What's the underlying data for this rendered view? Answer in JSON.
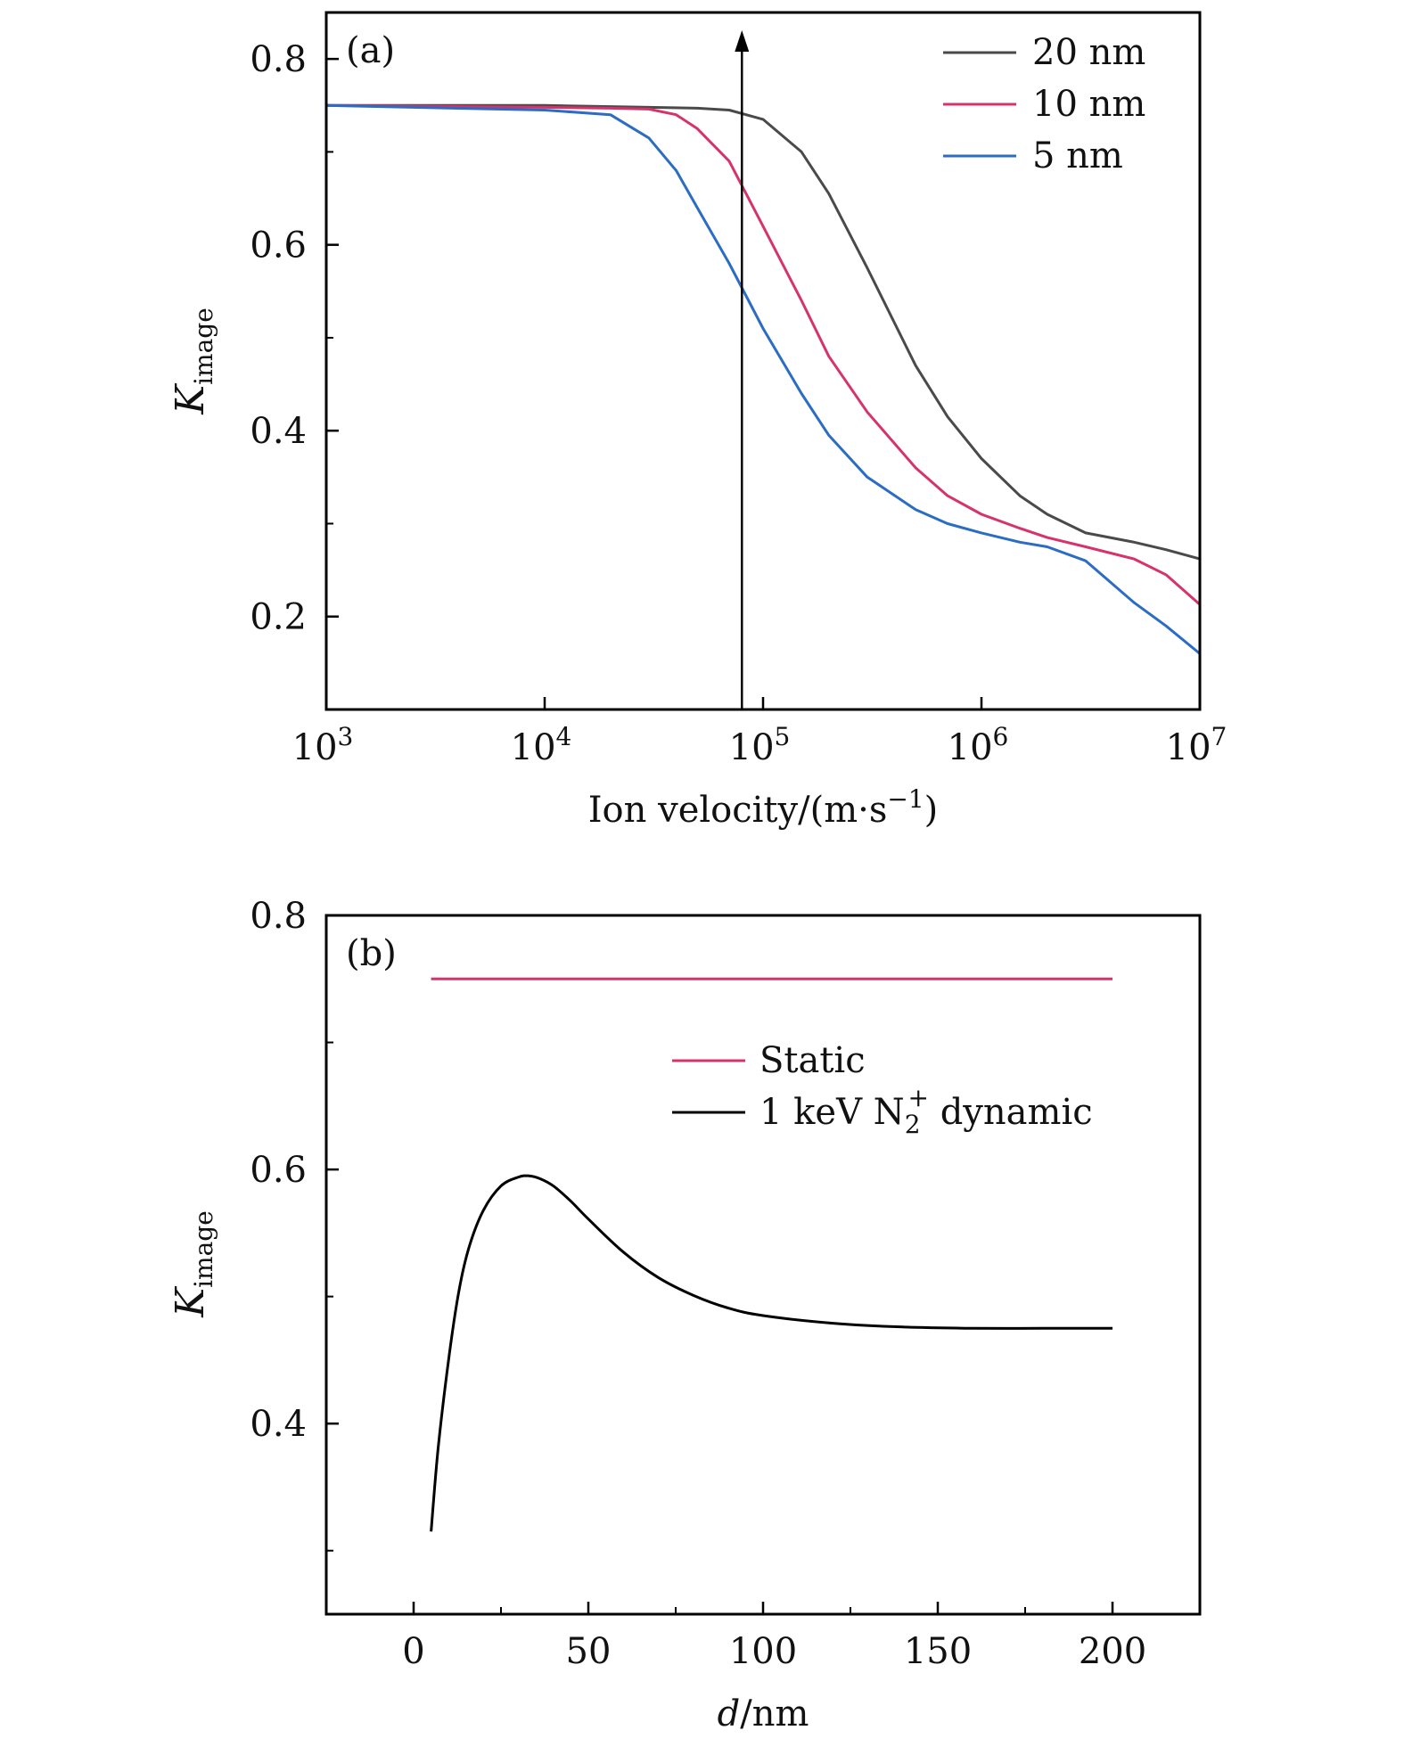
{
  "chart_data": [
    {
      "type": "line",
      "panel_label": "(a)",
      "xscale": "log",
      "xlim": [
        1000,
        10000000
      ],
      "ylim": [
        0.1,
        0.85
      ],
      "x_ticks": [
        {
          "value": 1000,
          "base": "10",
          "exp": "3"
        },
        {
          "value": 10000,
          "base": "10",
          "exp": "4"
        },
        {
          "value": 100000,
          "base": "10",
          "exp": "5"
        },
        {
          "value": 1000000,
          "base": "10",
          "exp": "6"
        },
        {
          "value": 10000000,
          "base": "10",
          "exp": "7"
        }
      ],
      "y_ticks": [
        {
          "value": 0.2,
          "label": "0.2"
        },
        {
          "value": 0.4,
          "label": "0.4"
        },
        {
          "value": 0.6,
          "label": "0.6"
        },
        {
          "value": 0.8,
          "label": "0.8"
        }
      ],
      "y_minor_ticks": [
        0.3,
        0.5,
        0.7
      ],
      "xlabel": {
        "main": "Ion velocity/(m·s",
        "sup": "−1",
        "close": ")"
      },
      "ylabel": {
        "main": "K",
        "sub": "image"
      },
      "legend": "top-right",
      "arrow_x": 80000,
      "series": [
        {
          "name": "20 nm",
          "color": "#4a4a4a",
          "x": [
            1000,
            10000,
            30000,
            50000,
            70000,
            100000,
            150000,
            200000,
            300000,
            500000,
            700000,
            1000000,
            1500000,
            2000000,
            3000000,
            5000000,
            7000000,
            10000000
          ],
          "y": [
            0.75,
            0.75,
            0.748,
            0.747,
            0.745,
            0.735,
            0.7,
            0.655,
            0.575,
            0.47,
            0.415,
            0.37,
            0.33,
            0.31,
            0.29,
            0.28,
            0.272,
            0.262
          ]
        },
        {
          "name": "10 nm",
          "color": "#d6336c",
          "x": [
            1000,
            10000,
            20000,
            30000,
            40000,
            50000,
            70000,
            100000,
            150000,
            200000,
            300000,
            500000,
            700000,
            1000000,
            1500000,
            2000000,
            3000000,
            5000000,
            7000000,
            10000000
          ],
          "y": [
            0.75,
            0.748,
            0.747,
            0.746,
            0.74,
            0.725,
            0.69,
            0.62,
            0.54,
            0.48,
            0.42,
            0.36,
            0.33,
            0.31,
            0.295,
            0.285,
            0.275,
            0.262,
            0.245,
            0.213
          ]
        },
        {
          "name": "5 nm",
          "color": "#2b6cc4",
          "x": [
            1000,
            10000,
            20000,
            30000,
            40000,
            50000,
            70000,
            100000,
            150000,
            200000,
            300000,
            500000,
            700000,
            1000000,
            1500000,
            2000000,
            3000000,
            5000000,
            7000000,
            10000000
          ],
          "y": [
            0.75,
            0.745,
            0.74,
            0.715,
            0.68,
            0.64,
            0.58,
            0.51,
            0.44,
            0.395,
            0.35,
            0.315,
            0.3,
            0.29,
            0.28,
            0.275,
            0.26,
            0.215,
            0.19,
            0.16
          ]
        }
      ]
    },
    {
      "type": "line",
      "panel_label": "(b)",
      "xlim": [
        -25,
        225
      ],
      "ylim": [
        0.25,
        0.8
      ],
      "x_ticks": [
        {
          "value": 0,
          "label": "0"
        },
        {
          "value": 50,
          "label": "50"
        },
        {
          "value": 100,
          "label": "100"
        },
        {
          "value": 150,
          "label": "150"
        },
        {
          "value": 200,
          "label": "200"
        }
      ],
      "x_minor_ticks": [
        25,
        75,
        125,
        175
      ],
      "y_ticks": [
        {
          "value": 0.4,
          "label": "0.4"
        },
        {
          "value": 0.6,
          "label": "0.6"
        },
        {
          "value": 0.8,
          "label": "0.8"
        }
      ],
      "y_minor_ticks": [
        0.3,
        0.5,
        0.7
      ],
      "xlabel": {
        "italic": "d",
        "rest": "/nm"
      },
      "ylabel": {
        "main": "K",
        "sub": "image"
      },
      "legend": "upper-right",
      "series": [
        {
          "name": "Static",
          "color": "#d6336c",
          "x": [
            5,
            200
          ],
          "y": [
            0.75,
            0.75
          ]
        },
        {
          "name": "1 keV N2+ dynamic",
          "label_parts": {
            "pre": "1 keV N",
            "sub": "2",
            "sup": "+",
            "post": "dynamic"
          },
          "color": "#000000",
          "x": [
            5,
            7,
            10,
            13,
            16,
            20,
            25,
            30,
            33,
            36,
            40,
            45,
            50,
            60,
            70,
            80,
            90,
            100,
            120,
            140,
            160,
            180,
            200
          ],
          "y": [
            0.315,
            0.38,
            0.45,
            0.505,
            0.54,
            0.568,
            0.587,
            0.594,
            0.595,
            0.593,
            0.587,
            0.575,
            0.561,
            0.535,
            0.515,
            0.501,
            0.491,
            0.485,
            0.479,
            0.476,
            0.475,
            0.475,
            0.475
          ]
        }
      ]
    }
  ]
}
